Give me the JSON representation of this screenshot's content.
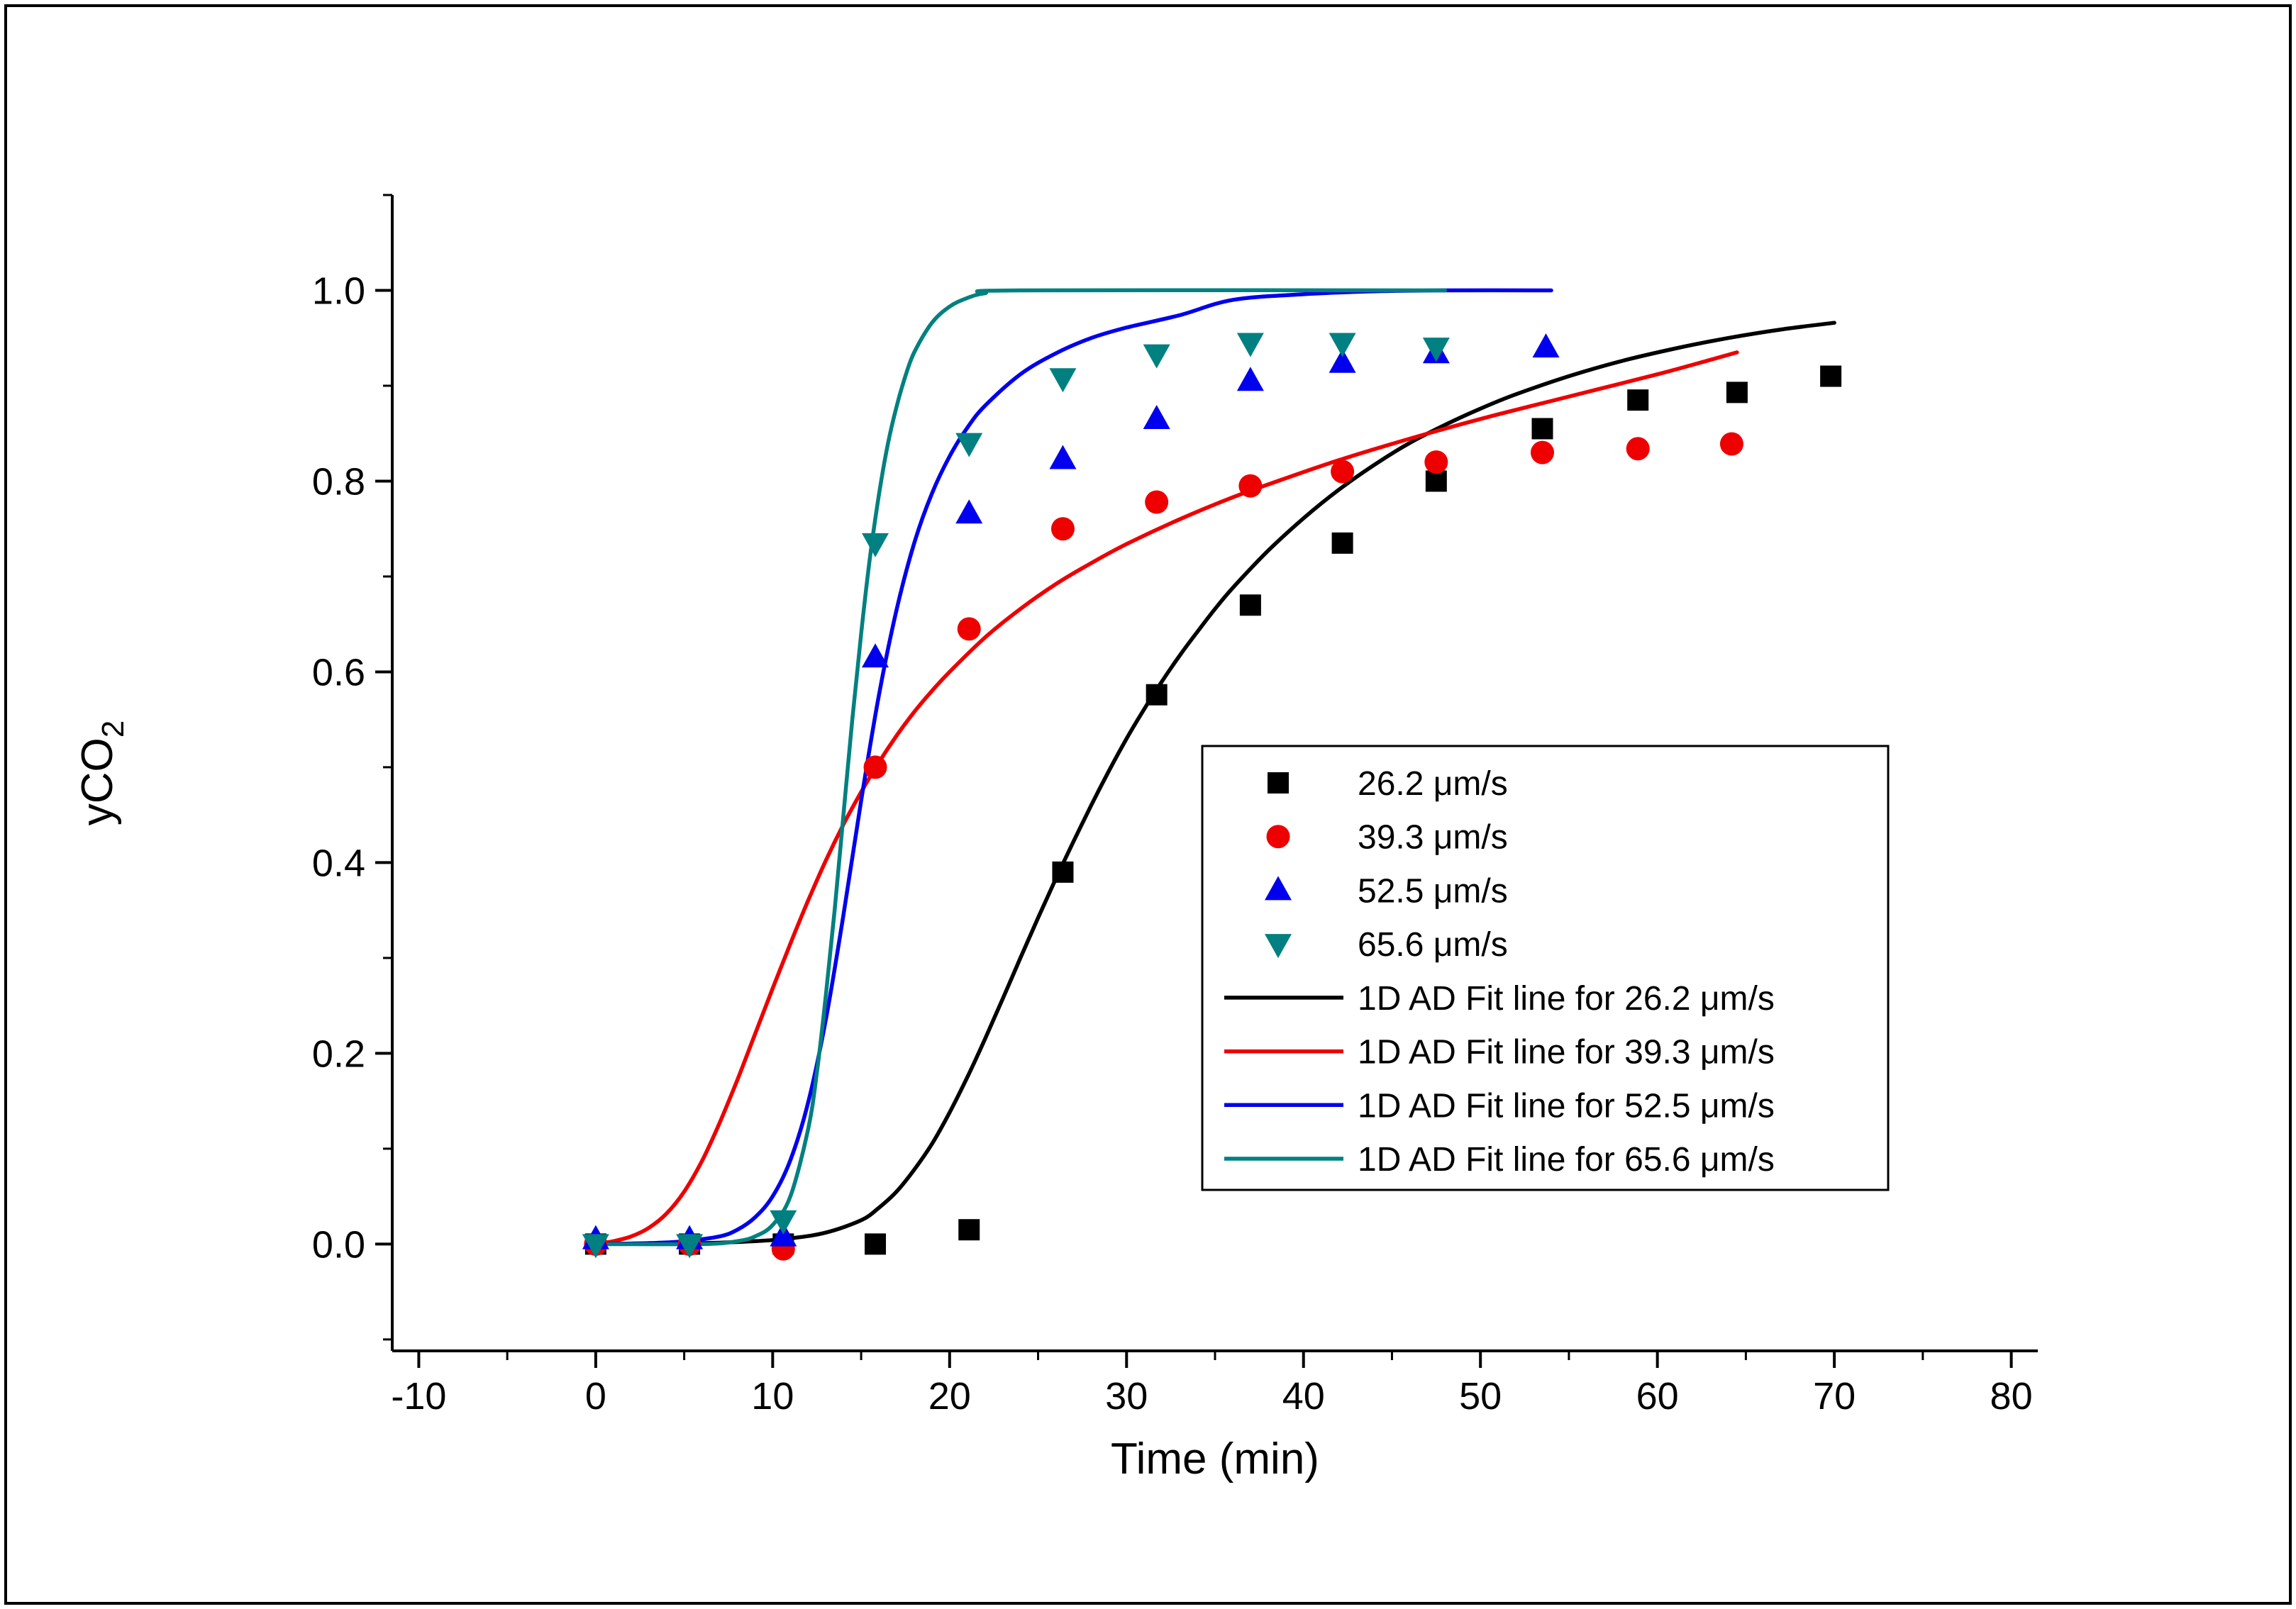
{
  "window": {
    "background": "#ffffff",
    "border_color": "#000000"
  },
  "chart_data": {
    "type": "scatter",
    "title": "",
    "xlabel": "Time (min)",
    "ylabel": {
      "base": "yCO",
      "subscript": "2"
    },
    "xlim": [
      -11.5,
      81.5
    ],
    "ylim": [
      -0.112,
      1.1
    ],
    "xticks": [
      -10,
      0,
      10,
      20,
      30,
      40,
      50,
      60,
      70,
      80
    ],
    "yticks": [
      "0.0",
      "0.2",
      "0.4",
      "0.6",
      "0.8",
      "1.0"
    ],
    "x_minor_ticks": [
      -5,
      5,
      15,
      25,
      35,
      45,
      55,
      65,
      75
    ],
    "y_minor_ticks": [
      -0.1,
      0.1,
      0.3,
      0.5,
      0.7,
      0.9,
      1.1
    ],
    "grid": false,
    "axis_color": "#000000",
    "legend_position": "middle-right",
    "series": [
      {
        "id": "26.2",
        "label": "26.2 μm/s",
        "marker": "square",
        "color": "#000000",
        "points": [
          [
            0,
            0
          ],
          [
            5.3,
            0
          ],
          [
            10.6,
            0
          ],
          [
            15.8,
            0
          ],
          [
            21.1,
            0.015
          ],
          [
            26.4,
            0.39
          ],
          [
            31.7,
            0.576
          ],
          [
            37,
            0.67
          ],
          [
            42.2,
            0.735
          ],
          [
            47.5,
            0.8
          ],
          [
            53.5,
            0.855
          ],
          [
            58.9,
            0.885
          ],
          [
            64.5,
            0.893
          ],
          [
            69.8,
            0.91
          ]
        ]
      },
      {
        "id": "39.3",
        "label": "39.3 μm/s",
        "marker": "circle",
        "color": "#ee0000",
        "points": [
          [
            0,
            0
          ],
          [
            5.3,
            0
          ],
          [
            10.6,
            -0.005
          ],
          [
            15.8,
            0.5
          ],
          [
            21.1,
            0.645
          ],
          [
            26.4,
            0.75
          ],
          [
            31.7,
            0.778
          ],
          [
            37,
            0.795
          ],
          [
            42.2,
            0.81
          ],
          [
            47.5,
            0.82
          ],
          [
            53.5,
            0.83
          ],
          [
            58.9,
            0.834
          ],
          [
            64.2,
            0.839
          ]
        ]
      },
      {
        "id": "52.5",
        "label": "52.5 μm/s",
        "marker": "triangle-up",
        "color": "#0000ee",
        "points": [
          [
            0,
            0.005
          ],
          [
            5.3,
            0.005
          ],
          [
            10.6,
            0.008
          ],
          [
            15.8,
            0.615
          ],
          [
            21.1,
            0.766
          ],
          [
            26.4,
            0.823
          ],
          [
            31.7,
            0.865
          ],
          [
            37,
            0.905
          ],
          [
            42.2,
            0.924
          ],
          [
            47.5,
            0.934
          ],
          [
            53.7,
            0.94
          ]
        ]
      },
      {
        "id": "65.6",
        "label": "65.6 μm/s",
        "marker": "triangle-down",
        "color": "#008080",
        "points": [
          [
            0,
            0
          ],
          [
            5.3,
            0
          ],
          [
            10.6,
            0.025
          ],
          [
            15.8,
            0.735
          ],
          [
            21.1,
            0.84
          ],
          [
            26.4,
            0.908
          ],
          [
            31.7,
            0.933
          ],
          [
            37,
            0.945
          ],
          [
            42.2,
            0.945
          ],
          [
            47.5,
            0.94
          ]
        ]
      }
    ],
    "fit_lines": [
      {
        "id": "fit-26.2",
        "label": "1D AD Fit line for 26.2 μm/s",
        "color": "#000000",
        "points": [
          [
            0,
            0
          ],
          [
            6,
            0.001
          ],
          [
            9,
            0.003
          ],
          [
            11,
            0.006
          ],
          [
            13,
            0.012
          ],
          [
            15,
            0.025
          ],
          [
            16,
            0.038
          ],
          [
            17,
            0.055
          ],
          [
            18,
            0.078
          ],
          [
            19,
            0.105
          ],
          [
            20,
            0.138
          ],
          [
            21,
            0.175
          ],
          [
            22,
            0.215
          ],
          [
            23,
            0.257
          ],
          [
            24,
            0.3
          ],
          [
            25,
            0.342
          ],
          [
            26,
            0.383
          ],
          [
            27,
            0.422
          ],
          [
            28,
            0.46
          ],
          [
            29,
            0.496
          ],
          [
            30,
            0.53
          ],
          [
            31,
            0.561
          ],
          [
            32,
            0.59
          ],
          [
            33,
            0.617
          ],
          [
            34,
            0.642
          ],
          [
            35,
            0.666
          ],
          [
            36,
            0.688
          ],
          [
            38,
            0.727
          ],
          [
            40,
            0.761
          ],
          [
            42,
            0.791
          ],
          [
            44,
            0.817
          ],
          [
            46,
            0.84
          ],
          [
            48,
            0.859
          ],
          [
            50,
            0.876
          ],
          [
            52,
            0.891
          ],
          [
            55,
            0.91
          ],
          [
            58,
            0.926
          ],
          [
            61,
            0.939
          ],
          [
            64,
            0.95
          ],
          [
            67,
            0.959
          ],
          [
            70,
            0.966
          ]
        ]
      },
      {
        "id": "fit-39.3",
        "label": "1D AD Fit line for 39.3 μm/s",
        "color": "#ee0000",
        "points": [
          [
            0,
            0
          ],
          [
            1,
            0.003
          ],
          [
            2,
            0.008
          ],
          [
            3,
            0.017
          ],
          [
            4,
            0.032
          ],
          [
            5,
            0.055
          ],
          [
            6,
            0.087
          ],
          [
            7,
            0.127
          ],
          [
            8,
            0.172
          ],
          [
            9,
            0.22
          ],
          [
            10,
            0.268
          ],
          [
            11,
            0.315
          ],
          [
            12,
            0.36
          ],
          [
            13,
            0.402
          ],
          [
            14,
            0.44
          ],
          [
            15,
            0.474
          ],
          [
            16,
            0.505
          ],
          [
            17,
            0.533
          ],
          [
            18,
            0.558
          ],
          [
            19,
            0.58
          ],
          [
            20,
            0.6
          ],
          [
            22,
            0.636
          ],
          [
            24,
            0.666
          ],
          [
            26,
            0.692
          ],
          [
            28,
            0.714
          ],
          [
            30,
            0.734
          ],
          [
            33,
            0.76
          ],
          [
            36,
            0.783
          ],
          [
            39,
            0.803
          ],
          [
            42,
            0.822
          ],
          [
            45,
            0.839
          ],
          [
            48,
            0.855
          ],
          [
            51,
            0.87
          ],
          [
            54,
            0.884
          ],
          [
            57,
            0.898
          ],
          [
            60,
            0.912
          ],
          [
            62,
            0.922
          ],
          [
            64.5,
            0.935
          ]
        ]
      },
      {
        "id": "fit-52.5",
        "label": "1D AD Fit line for 52.5 μm/s",
        "color": "#0000ee",
        "points": [
          [
            0,
            0
          ],
          [
            3,
            0.001
          ],
          [
            5,
            0.003
          ],
          [
            7,
            0.008
          ],
          [
            8,
            0.015
          ],
          [
            9,
            0.028
          ],
          [
            10,
            0.05
          ],
          [
            11,
            0.088
          ],
          [
            12,
            0.148
          ],
          [
            13,
            0.235
          ],
          [
            14,
            0.345
          ],
          [
            15,
            0.465
          ],
          [
            16,
            0.575
          ],
          [
            17,
            0.665
          ],
          [
            18,
            0.735
          ],
          [
            19,
            0.787
          ],
          [
            20,
            0.826
          ],
          [
            21,
            0.856
          ],
          [
            22,
            0.879
          ],
          [
            24,
            0.912
          ],
          [
            26,
            0.934
          ],
          [
            28,
            0.95
          ],
          [
            30,
            0.961
          ],
          [
            33,
            0.974
          ],
          [
            36,
            0.99
          ],
          [
            40,
            0.996
          ],
          [
            44,
            0.999
          ],
          [
            48,
            1.0
          ],
          [
            54,
            1.0
          ]
        ]
      },
      {
        "id": "fit-65.6",
        "label": "1D AD Fit line for 65.6 μm/s",
        "color": "#008080",
        "points": [
          [
            0,
            0
          ],
          [
            6,
            0
          ],
          [
            8,
            0.003
          ],
          [
            9,
            0.008
          ],
          [
            10,
            0.02
          ],
          [
            11,
            0.05
          ],
          [
            12,
            0.12
          ],
          [
            12.5,
            0.18
          ],
          [
            13,
            0.26
          ],
          [
            13.5,
            0.35
          ],
          [
            14,
            0.45
          ],
          [
            14.5,
            0.55
          ],
          [
            15,
            0.64
          ],
          [
            15.5,
            0.72
          ],
          [
            16,
            0.785
          ],
          [
            16.5,
            0.838
          ],
          [
            17,
            0.878
          ],
          [
            17.5,
            0.91
          ],
          [
            18,
            0.935
          ],
          [
            19,
            0.966
          ],
          [
            20,
            0.983
          ],
          [
            21,
            0.992
          ],
          [
            22,
            0.997
          ],
          [
            24,
            1.0
          ],
          [
            48,
            1.0
          ]
        ]
      }
    ],
    "legend": {
      "border_color": "#000000",
      "background": "#ffffff"
    }
  }
}
